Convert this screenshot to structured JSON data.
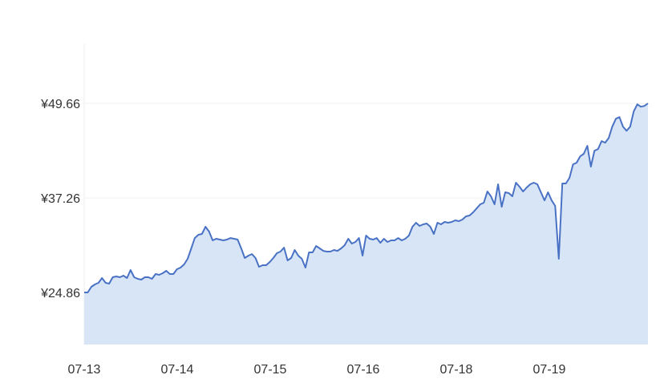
{
  "chart_data": {
    "type": "area",
    "title": "",
    "xlabel": "",
    "ylabel": "",
    "x_tick_labels": [
      "07-13",
      "07-14",
      "07-15",
      "07-16",
      "07-18",
      "07-19"
    ],
    "y_tick_labels": [
      "¥24.86",
      "¥37.26",
      "¥49.66"
    ],
    "y_ticks": [
      24.86,
      37.26,
      49.66
    ],
    "ylim": [
      18.03,
      57.44
    ],
    "grid": "horizontal",
    "legend": "none",
    "colors": {
      "line": "#4a72c4",
      "fill": "#d7e5f7",
      "grid": "#f0f0f0",
      "axis_text": "#333333"
    },
    "series": [
      {
        "values": [
          24.86,
          24.86,
          25.6,
          25.91,
          26.12,
          26.75,
          26.12,
          26.02,
          26.86,
          26.96,
          26.86,
          27.07,
          26.75,
          27.8,
          26.86,
          26.65,
          26.54,
          26.86,
          26.86,
          26.65,
          27.28,
          27.17,
          27.38,
          27.7,
          27.28,
          27.28,
          27.91,
          28.12,
          28.54,
          29.27,
          30.64,
          32.0,
          32.43,
          32.53,
          33.48,
          32.85,
          31.69,
          31.9,
          31.8,
          31.69,
          31.8,
          32.0,
          31.9,
          31.8,
          30.64,
          29.38,
          29.69,
          29.9,
          29.38,
          28.22,
          28.43,
          28.43,
          28.85,
          29.38,
          30.01,
          30.22,
          30.74,
          29.06,
          29.38,
          30.43,
          29.69,
          29.27,
          28.12,
          30.12,
          30.12,
          30.96,
          30.64,
          30.32,
          30.22,
          30.22,
          30.43,
          30.32,
          30.64,
          31.06,
          31.9,
          31.27,
          31.48,
          32.0,
          29.69,
          32.32,
          31.9,
          31.8,
          32.0,
          31.37,
          31.9,
          31.48,
          31.69,
          31.69,
          32.0,
          31.69,
          31.9,
          32.32,
          33.48,
          34.0,
          33.58,
          33.79,
          33.9,
          33.48,
          32.53,
          34.0,
          33.79,
          34.11,
          34.0,
          34.11,
          34.32,
          34.21,
          34.42,
          34.84,
          34.95,
          35.37,
          35.89,
          36.42,
          36.63,
          38.1,
          37.47,
          36.42,
          39.05,
          36.1,
          38.0,
          37.89,
          37.47,
          39.26,
          38.73,
          38.1,
          38.62,
          39.05,
          39.26,
          39.05,
          38.0,
          36.94,
          38.0,
          36.94,
          36.21,
          29.27,
          39.15,
          39.15,
          39.89,
          41.67,
          41.88,
          42.72,
          43.04,
          44.09,
          41.36,
          43.45,
          43.66,
          44.71,
          44.5,
          45.13,
          46.6,
          47.65,
          47.86,
          46.6,
          46.07,
          46.6,
          48.59,
          49.54,
          49.22,
          49.33,
          49.66
        ]
      }
    ]
  }
}
